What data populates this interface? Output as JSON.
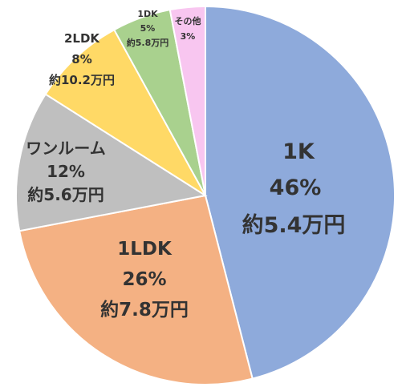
{
  "chart_data": {
    "type": "pie",
    "title": "",
    "start_angle_deg": 0,
    "direction": "clockwise",
    "slices": [
      {
        "category": "1K",
        "percent_label": "46%",
        "amount_label": "約5.4万円",
        "value": 46,
        "color": "#8eaadb"
      },
      {
        "category": "1LDK",
        "percent_label": "26%",
        "amount_label": "約7.8万円",
        "value": 26,
        "color": "#f4b183"
      },
      {
        "category": "ワンルーム",
        "percent_label": "12%",
        "amount_label": "約5.6万円",
        "value": 12,
        "color": "#bfbfbf"
      },
      {
        "category": "2LDK",
        "percent_label": "8%",
        "amount_label": "約10.2万円",
        "value": 8,
        "color": "#ffd966"
      },
      {
        "category": "1DK",
        "percent_label": "5%",
        "amount_label": "約5.8万円",
        "value": 5,
        "color": "#a9d18e"
      },
      {
        "category": "その他",
        "percent_label": "3%",
        "amount_label": "",
        "value": 3,
        "color": "#f8c6f0"
      }
    ]
  }
}
